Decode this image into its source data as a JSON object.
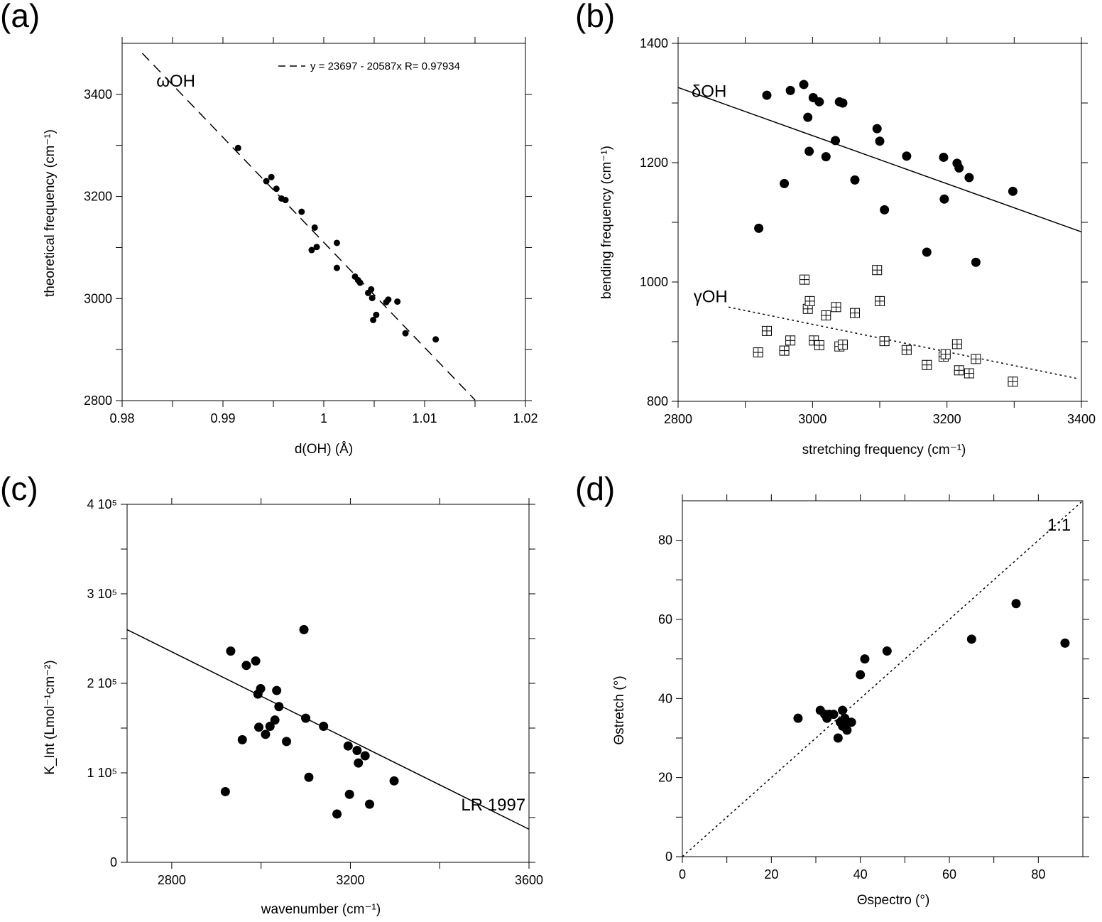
{
  "chart_data": [
    {
      "id": "a",
      "type": "scatter",
      "panel_label": "(a)",
      "xlabel": "d(OH) (Å)",
      "ylabel": "theoretical frequency (cm⁻¹)",
      "xlim": [
        0.98,
        1.02
      ],
      "ylim": [
        2800,
        3500
      ],
      "xticks": [
        0.98,
        0.99,
        1,
        1.01,
        1.02
      ],
      "xtick_labels": [
        "0.98",
        "0.99",
        "1",
        "1.01",
        "1.02"
      ],
      "yticks": [
        2800,
        3000,
        3200,
        3400
      ],
      "ytick_labels": [
        "2800",
        "3000",
        "3200",
        "3400"
      ],
      "grid": false,
      "legend": {
        "position": "top-right",
        "label": "y = 23697 - 20587x   R= 0.97934"
      },
      "annotations": [
        {
          "text": "ωOH",
          "x": 0.9834,
          "y": 3415
        }
      ],
      "fit_line": {
        "style": "dashed",
        "slope": -20587,
        "intercept": 23697,
        "x_range": [
          0.982,
          1.015
        ]
      },
      "series": [
        {
          "marker": "filled-circle-small",
          "points": [
            [
              0.9915,
              3295
            ],
            [
              0.9943,
              3230
            ],
            [
              0.9948,
              3238
            ],
            [
              0.9953,
              3215
            ],
            [
              0.9958,
              3196
            ],
            [
              0.9962,
              3193
            ],
            [
              0.9978,
              3170
            ],
            [
              0.9988,
              3095
            ],
            [
              0.9991,
              3139
            ],
            [
              0.9993,
              3101
            ],
            [
              1.0013,
              3109
            ],
            [
              1.0013,
              3060
            ],
            [
              1.0031,
              3043
            ],
            [
              1.0034,
              3036
            ],
            [
              1.0036,
              3031
            ],
            [
              1.0044,
              3011
            ],
            [
              1.0047,
              3018
            ],
            [
              1.0048,
              3001
            ],
            [
              1.0049,
              2958
            ],
            [
              1.0052,
              2968
            ],
            [
              1.0062,
              2993
            ],
            [
              1.0064,
              2998
            ],
            [
              1.0073,
              2994
            ],
            [
              1.0081,
              2932
            ],
            [
              1.0111,
              2920
            ]
          ]
        }
      ]
    },
    {
      "id": "b",
      "type": "scatter",
      "panel_label": "(b)",
      "xlabel": "stretching frequency (cm⁻¹)",
      "ylabel": "bending frequency (cm⁻¹)",
      "xlim": [
        2800,
        3400
      ],
      "ylim": [
        800,
        1400
      ],
      "xticks": [
        2800,
        3000,
        3200,
        3400
      ],
      "xtick_labels": [
        "2800",
        "3000",
        "3200",
        "3400"
      ],
      "yticks": [
        800,
        1000,
        1200,
        1400
      ],
      "ytick_labels": [
        "800",
        "1000",
        "1200",
        "1400"
      ],
      "grid": false,
      "annotations": [
        {
          "text": "δOH",
          "x": 2820,
          "y": 1310
        },
        {
          "text": "γOH",
          "x": 2823,
          "y": 966
        }
      ],
      "fit_lines": [
        {
          "style": "solid",
          "from": [
            2800,
            1326
          ],
          "to": [
            3400,
            1084
          ]
        },
        {
          "style": "dotted",
          "from": [
            2875,
            958
          ],
          "to": [
            3395,
            838
          ]
        }
      ],
      "series": [
        {
          "label": "δOH",
          "marker": "filled-circle",
          "points": [
            [
              2920,
              1090
            ],
            [
              2932,
              1313
            ],
            [
              2967,
              1321
            ],
            [
              2958,
              1165
            ],
            [
              2987,
              1331
            ],
            [
              2993,
              1276
            ],
            [
              2995,
              1219
            ],
            [
              3001,
              1309
            ],
            [
              3010,
              1302
            ],
            [
              3020,
              1210
            ],
            [
              3034,
              1237
            ],
            [
              3040,
              1302
            ],
            [
              3045,
              1300
            ],
            [
              3063,
              1171
            ],
            [
              3096,
              1257
            ],
            [
              3100,
              1236
            ],
            [
              3107,
              1121
            ],
            [
              3140,
              1211
            ],
            [
              3170,
              1050
            ],
            [
              3195,
              1209
            ],
            [
              3196,
              1139
            ],
            [
              3215,
              1199
            ],
            [
              3218,
              1191
            ],
            [
              3233,
              1175
            ],
            [
              3243,
              1033
            ],
            [
              3298,
              1152
            ]
          ]
        },
        {
          "label": "γOH",
          "marker": "open-square-cross",
          "points": [
            [
              2919,
              882
            ],
            [
              2932,
              918
            ],
            [
              2958,
              885
            ],
            [
              2967,
              902
            ],
            [
              2988,
              1004
            ],
            [
              2993,
              955
            ],
            [
              2996,
              968
            ],
            [
              3002,
              902
            ],
            [
              3010,
              894
            ],
            [
              3020,
              944
            ],
            [
              3035,
              958
            ],
            [
              3040,
              892
            ],
            [
              3045,
              895
            ],
            [
              3063,
              948
            ],
            [
              3096,
              1020
            ],
            [
              3100,
              968
            ],
            [
              3107,
              901
            ],
            [
              3140,
              886
            ],
            [
              3170,
              861
            ],
            [
              3195,
              875
            ],
            [
              3198,
              879
            ],
            [
              3215,
              896
            ],
            [
              3218,
              852
            ],
            [
              3233,
              847
            ],
            [
              3243,
              871
            ],
            [
              3298,
              833
            ]
          ]
        }
      ]
    },
    {
      "id": "c",
      "type": "scatter",
      "panel_label": "(c)",
      "xlabel": "wavenumber (cm⁻¹)",
      "ylabel": "K_Int (Lmol⁻¹cm⁻²)",
      "xlim": [
        2700,
        3600
      ],
      "ylim": [
        0,
        400000
      ],
      "xticks": [
        2800,
        3200,
        3600
      ],
      "xtick_labels": [
        "2800",
        "3200",
        "3600"
      ],
      "yticks": [
        0,
        100000,
        200000,
        300000,
        400000
      ],
      "ytick_labels": [
        "0",
        "1 10⁵",
        "2 10⁵",
        "3 10⁵",
        "4 10⁵"
      ],
      "grid": false,
      "annotations": [
        {
          "text": "LR 1997",
          "x": 3448,
          "y": 58000
        }
      ],
      "fit_line": {
        "style": "solid",
        "from": [
          2700,
          260000
        ],
        "to": [
          3600,
          37000
        ]
      },
      "series": [
        {
          "marker": "filled-circle",
          "points": [
            [
              2920,
              79000
            ],
            [
              2932,
              236000
            ],
            [
              2958,
              137000
            ],
            [
              2967,
              220000
            ],
            [
              2988,
              225000
            ],
            [
              2993,
              188000
            ],
            [
              2995,
              151000
            ],
            [
              2999,
              194000
            ],
            [
              3010,
              143000
            ],
            [
              3020,
              152000
            ],
            [
              3031,
              159000
            ],
            [
              3035,
              192000
            ],
            [
              3040,
              174000
            ],
            [
              3057,
              135000
            ],
            [
              3096,
              260000
            ],
            [
              3100,
              161000
            ],
            [
              3107,
              95000
            ],
            [
              3140,
              152000
            ],
            [
              3170,
              54000
            ],
            [
              3195,
              130000
            ],
            [
              3198,
              76000
            ],
            [
              3215,
              125000
            ],
            [
              3218,
              111000
            ],
            [
              3233,
              119000
            ],
            [
              3243,
              65000
            ],
            [
              3298,
              91000
            ]
          ]
        }
      ]
    },
    {
      "id": "d",
      "type": "scatter",
      "panel_label": "(d)",
      "xlabel": "Θspectro (°)",
      "ylabel": "Θstretch (°)",
      "xlim": [
        0,
        90
      ],
      "ylim": [
        0,
        90
      ],
      "xticks": [
        0,
        20,
        40,
        60,
        80
      ],
      "xtick_labels": [
        "0",
        "20",
        "40",
        "60",
        "80"
      ],
      "yticks": [
        0,
        20,
        40,
        60,
        80
      ],
      "ytick_labels": [
        "0",
        "20",
        "40",
        "60",
        "80"
      ],
      "grid": false,
      "annotations": [
        {
          "text": "1:1",
          "x": 82,
          "y": 82.5
        }
      ],
      "fit_line": {
        "style": "dotted",
        "from": [
          0,
          0
        ],
        "to": [
          90,
          90
        ]
      },
      "series": [
        {
          "marker": "filled-circle",
          "points": [
            [
              26,
              35
            ],
            [
              31,
              37
            ],
            [
              32,
              36
            ],
            [
              32.5,
              35
            ],
            [
              33,
              36
            ],
            [
              34,
              36
            ],
            [
              35,
              30
            ],
            [
              35.5,
              34
            ],
            [
              36,
              37
            ],
            [
              36,
              33
            ],
            [
              36.5,
              35
            ],
            [
              37,
              32
            ],
            [
              37,
              34
            ],
            [
              38,
              34
            ],
            [
              40,
              46
            ],
            [
              41,
              50
            ],
            [
              46,
              52
            ],
            [
              65,
              55
            ],
            [
              75,
              64
            ],
            [
              86,
              54
            ]
          ]
        }
      ]
    }
  ]
}
